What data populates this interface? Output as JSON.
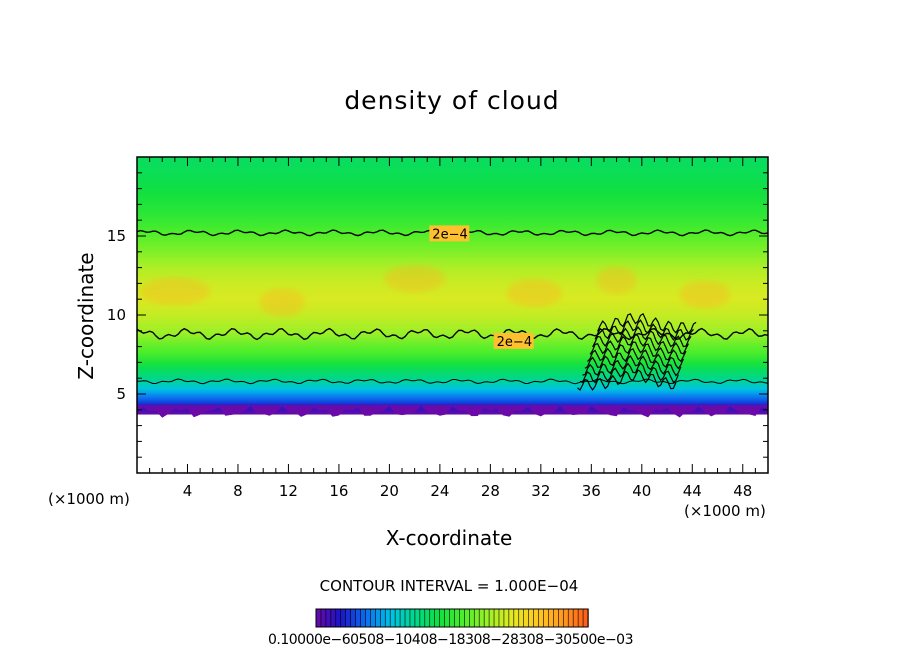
{
  "chart_data": {
    "type": "heatmap",
    "title": "density of cloud",
    "xlabel": "X-coordinate",
    "ylabel": "Z-coordinate",
    "x_unit_label": "(×1000 m)",
    "y_unit_label": "(×1000 m)",
    "xlim": [
      0,
      50
    ],
    "ylim": [
      0,
      20
    ],
    "x_ticks": [
      4,
      8,
      12,
      16,
      20,
      24,
      28,
      32,
      36,
      40,
      44,
      48
    ],
    "y_ticks": [
      5,
      10,
      15
    ],
    "contour_interval_text": "CONTOUR INTERVAL = 1.000E−04",
    "contour_labels": [
      {
        "text": "2e−4",
        "x": 23.4,
        "z": 15.1
      },
      {
        "text": "2e−4",
        "x": 28.5,
        "z": 8.3
      }
    ],
    "colorbar_label_text": "0.10000e−60508−10408−18308−28308−30500e−03",
    "profile": {
      "z": [
        3.7,
        4.0,
        4.5,
        5.0,
        5.5,
        6.0,
        6.5,
        7.0,
        7.5,
        8.0,
        8.8,
        10.0,
        11.0,
        12.0,
        13.0,
        14.0,
        15.0,
        15.5,
        16.5,
        17.5,
        18.5,
        19.8
      ],
      "value": [
        0.0,
        0.3,
        0.8,
        1.25,
        1.7,
        2.0,
        2.3,
        2.6,
        2.9,
        3.1,
        3.45,
        3.75,
        3.9,
        3.8,
        3.6,
        3.3,
        3.05,
        2.9,
        2.7,
        2.55,
        2.4,
        2.3
      ]
    },
    "colorscale": [
      "#6a0aa8",
      "#1a14c8",
      "#0b6cf0",
      "#00c2e8",
      "#00d88a",
      "#10e040",
      "#50ee2a",
      "#a0f028",
      "#e8e820",
      "#ffc820",
      "#ff9820",
      "#ff5a18"
    ],
    "colorscale_range": [
      0,
      5.5
    ],
    "contour_line_color": "#000000"
  }
}
